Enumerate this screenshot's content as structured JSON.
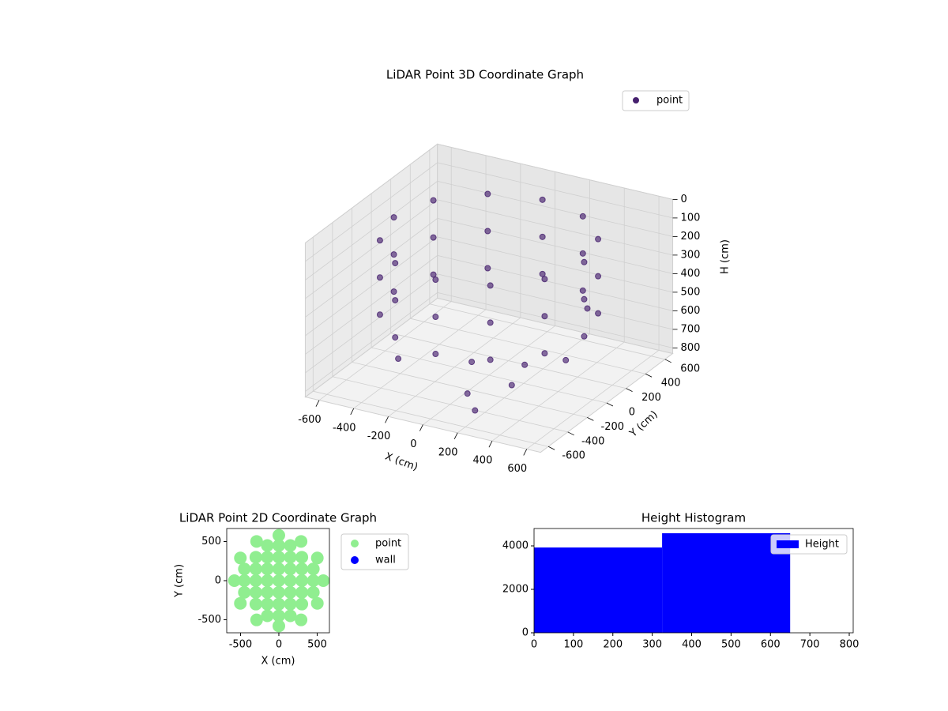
{
  "chart_data": [
    {
      "type": "scatter3d",
      "title": "LiDAR Point 3D Coordinate Graph",
      "xlabel": "X (cm)",
      "ylabel": "Y (cm)",
      "zlabel": "H (cm)",
      "xlim": [
        -680,
        680
      ],
      "ylim": [
        -680,
        680
      ],
      "zlim": [
        0,
        830
      ],
      "zinvert": true,
      "xticks": [
        -600,
        -400,
        -200,
        0,
        200,
        400,
        600
      ],
      "yticks": [
        -600,
        -400,
        -200,
        0,
        200,
        400,
        600
      ],
      "zticks": [
        0,
        100,
        200,
        300,
        400,
        500,
        600,
        700,
        800
      ],
      "legend": "upper right",
      "series": [
        {
          "name": "point",
          "color": "#46206e",
          "x": [
            550,
            476,
            275,
            0,
            -275,
            -476,
            -550,
            -476,
            -275,
            0,
            275,
            476,
            550,
            476,
            275,
            0,
            -275,
            -476,
            -550,
            -476,
            -275,
            0,
            275,
            476,
            550,
            476,
            275,
            0,
            -275,
            -476,
            -550,
            -476,
            -275,
            0,
            275,
            476,
            100,
            200,
            300,
            -300,
            400,
            500,
            150,
            -100
          ],
          "y": [
            0,
            275,
            476,
            550,
            476,
            275,
            0,
            -275,
            -476,
            -550,
            -476,
            -275,
            0,
            275,
            476,
            550,
            476,
            275,
            0,
            -275,
            -476,
            -550,
            -476,
            -275,
            0,
            275,
            476,
            550,
            476,
            275,
            0,
            -275,
            -476,
            -550,
            -476,
            -275,
            -400,
            -500,
            -300,
            -400,
            300,
            -100,
            100,
            0
          ],
          "z": [
            100,
            100,
            100,
            100,
            100,
            100,
            100,
            100,
            100,
            100,
            100,
            100,
            300,
            300,
            300,
            300,
            300,
            300,
            300,
            300,
            300,
            300,
            300,
            300,
            500,
            500,
            500,
            500,
            500,
            500,
            500,
            500,
            500,
            500,
            500,
            500,
            750,
            780,
            700,
            650,
            500,
            600,
            780,
            780
          ]
        }
      ]
    },
    {
      "type": "scatter",
      "title": "LiDAR Point 2D Coordinate Graph",
      "xlabel": "X (cm)",
      "ylabel": "Y (cm)",
      "xlim": [
        -680,
        660
      ],
      "ylim": [
        -667,
        667
      ],
      "xticks": [
        -500,
        0,
        500
      ],
      "yticks": [
        -500,
        0,
        500
      ],
      "legend": "outside right",
      "series": [
        {
          "name": "point",
          "color": "#90ee90",
          "x": [
            0,
            0,
            0,
            0,
            0,
            0,
            0,
            150,
            150,
            150,
            150,
            150,
            150,
            150,
            -150,
            -150,
            -150,
            -150,
            -150,
            -150,
            -150,
            300,
            300,
            300,
            300,
            300,
            -300,
            -300,
            -300,
            -300,
            -300,
            450,
            450,
            450,
            -450,
            -450,
            -450,
            580,
            502,
            290,
            0,
            -290,
            -502,
            -580,
            -502,
            -290,
            0,
            290,
            502
          ],
          "y": [
            -450,
            -300,
            -150,
            0,
            150,
            300,
            450,
            -450,
            -300,
            -150,
            0,
            150,
            300,
            450,
            -450,
            -300,
            -150,
            0,
            150,
            300,
            450,
            -300,
            -150,
            0,
            150,
            300,
            -300,
            -150,
            0,
            150,
            300,
            -150,
            0,
            150,
            -150,
            0,
            150,
            0,
            290,
            502,
            580,
            502,
            290,
            0,
            -290,
            -502,
            -580,
            -502,
            -290
          ]
        },
        {
          "name": "wall",
          "color": "#0000ff",
          "x": [],
          "y": []
        }
      ]
    },
    {
      "type": "histogram",
      "title": "Height Histogram",
      "bins": [
        0,
        325,
        650
      ],
      "xlim": [
        0,
        810
      ],
      "ylim": [
        0,
        4800
      ],
      "xticks": [
        0,
        100,
        200,
        300,
        400,
        500,
        600,
        700,
        800
      ],
      "yticks": [
        0,
        2000,
        4000
      ],
      "legend": "upper right",
      "series": [
        {
          "name": "Height",
          "color": "#0000ff",
          "values": [
            3927,
            4582
          ]
        }
      ]
    }
  ]
}
